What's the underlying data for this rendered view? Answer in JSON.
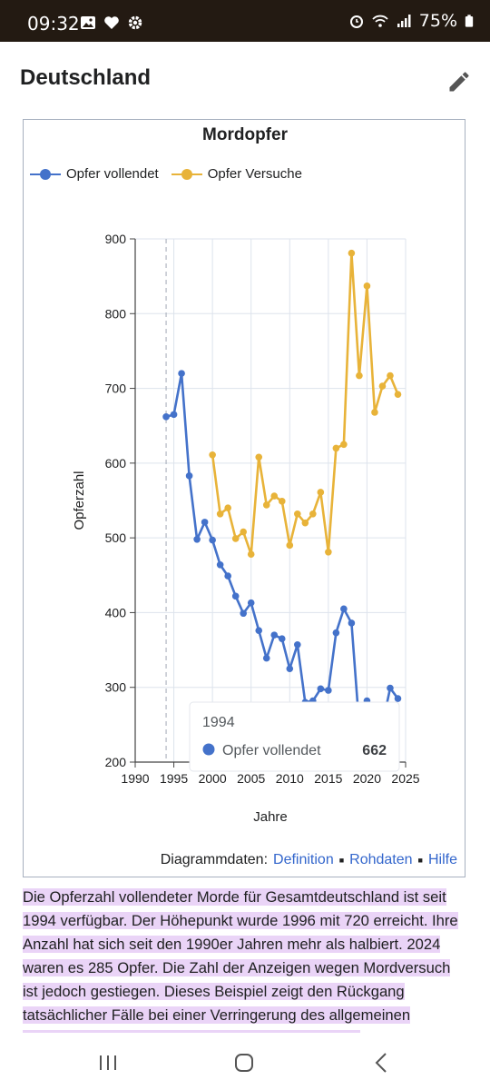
{
  "status_bar": {
    "time": "09:32",
    "battery": "75%",
    "icons_left": [
      "image-icon",
      "heart-icon",
      "gear-icon"
    ],
    "icons_right": [
      "alarm-icon",
      "wifi-icon",
      "signal-icon",
      "battery-icon"
    ]
  },
  "header": {
    "title": "Deutschland",
    "edit_icon": "pencil-icon"
  },
  "chart_footer": {
    "label": "Diagrammdaten:",
    "links": [
      "Definition",
      "Rohdaten",
      "Hilfe"
    ]
  },
  "paragraph": "Die Opferzahl vollendeter Morde für Gesamtdeutschland ist seit 1994 verfügbar. Der Höhepunkt wurde 1996 mit 720 erreicht. Ihre Anzahl hat sich seit den 1990er Jahren mehr als halbiert. 2024 waren es 285 Opfer. Die Zahl der Anzeigen wegen Mordversuch ist jedoch gestiegen. Dieses Beispiel zeigt den Rückgang tatsächlicher Fälle bei einer Verringerung des allgemeinen Dunkelfeldes. Tatsächlich sind für Opfer insgesamt",
  "nav_bar": [
    "recent-apps-icon",
    "home-icon",
    "back-icon"
  ],
  "chart_data": {
    "type": "line",
    "title": "Mordopfer",
    "xlabel": "Jahre",
    "ylabel": "Opferzahl",
    "xlim": [
      1990,
      2025
    ],
    "ylim": [
      200,
      900
    ],
    "xticks": [
      "1990",
      "1995",
      "2000",
      "2005",
      "2010",
      "2015",
      "2020",
      "2025"
    ],
    "yticks": [
      "200",
      "300",
      "400",
      "500",
      "600",
      "700",
      "800",
      "900"
    ],
    "grid": true,
    "legend_position": "top-left",
    "series": [
      {
        "name": "Opfer vollendet",
        "color": "#4472ca",
        "x": [
          1994,
          1995,
          1996,
          1997,
          1998,
          1999,
          2000,
          2001,
          2002,
          2003,
          2004,
          2005,
          2006,
          2007,
          2008,
          2009,
          2010,
          2011,
          2012,
          2013,
          2014,
          2015,
          2016,
          2017,
          2018,
          2019,
          2020,
          2021,
          2022,
          2023,
          2024
        ],
        "y": [
          662,
          665,
          720,
          583,
          498,
          521,
          497,
          464,
          449,
          422,
          399,
          413,
          376,
          339,
          370,
          365,
          325,
          357,
          280,
          282,
          298,
          296,
          373,
          405,
          386,
          248,
          282,
          238,
          250,
          299,
          285
        ]
      },
      {
        "name": "Opfer Versuche",
        "color": "#e8b339",
        "x": [
          2000,
          2001,
          2002,
          2003,
          2004,
          2005,
          2006,
          2007,
          2008,
          2009,
          2010,
          2011,
          2012,
          2013,
          2014,
          2015,
          2016,
          2017,
          2018,
          2019,
          2020,
          2021,
          2022,
          2023,
          2024
        ],
        "y": [
          611,
          532,
          540,
          499,
          508,
          478,
          608,
          544,
          556,
          549,
          490,
          532,
          520,
          532,
          561,
          481,
          620,
          625,
          881,
          717,
          837,
          668,
          703,
          717,
          692
        ]
      }
    ],
    "tooltip": {
      "year": "1994",
      "series": "Opfer vollendet",
      "value": "662"
    }
  }
}
